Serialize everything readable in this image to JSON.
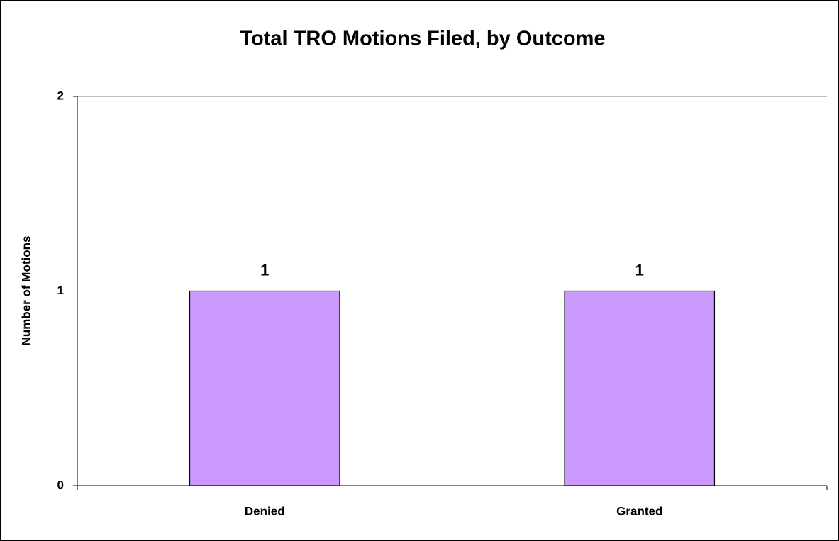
{
  "chart_data": {
    "type": "bar",
    "title": "Total TRO Motions Filed, by Outcome",
    "y_label": "Number of Motions",
    "categories": [
      "Denied",
      "Granted"
    ],
    "values": [
      1,
      1
    ],
    "color": "#cc99ff",
    "ylim": [
      0,
      2
    ],
    "yticks": [
      0,
      1,
      2
    ],
    "grid": true,
    "data_labels": true
  }
}
